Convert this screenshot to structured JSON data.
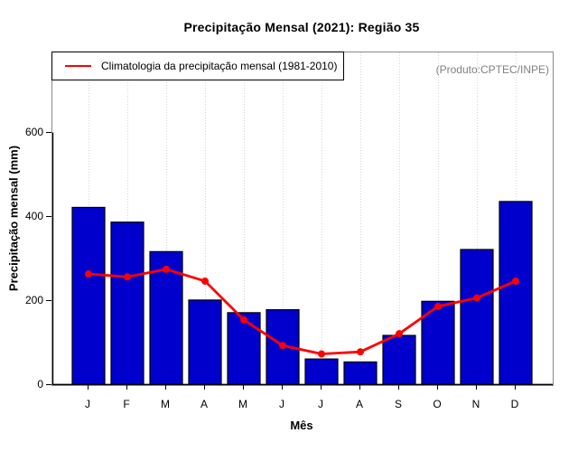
{
  "title": "Precipitação Mensal (2021): Região 35",
  "legend": {
    "label": "Climatologia da precipitação mensal (1981-2010)"
  },
  "annotation": "(Produto:CPTEC/INPE)",
  "axes": {
    "xlabel": "Mês",
    "ylabel": "Precipitação mensal (mm)",
    "ytick_labels": [
      "0",
      "200",
      "400",
      "600"
    ],
    "ytick_values": [
      0,
      200,
      400,
      600
    ]
  },
  "colors": {
    "bar_fill": "#0000CD",
    "bar_border": "#000000",
    "climatology_line": "#FF0000",
    "grid": "#D6D6D6",
    "box_border": "#8A8A8A",
    "axis": "#000000",
    "annotation_text": "#808080"
  },
  "chart_data": {
    "type": "bar",
    "title": "Precipitação Mensal (2021): Região 35",
    "xlabel": "Mês",
    "ylabel": "Precipitação mensal (mm)",
    "categories": [
      "J",
      "F",
      "M",
      "A",
      "M",
      "J",
      "J",
      "A",
      "S",
      "O",
      "N",
      "D"
    ],
    "series": [
      {
        "name": "Precipitação mensal 2021",
        "type": "bar",
        "values": [
          422,
          387,
          317,
          202,
          172,
          179,
          62,
          55,
          118,
          199,
          322,
          436
        ]
      },
      {
        "name": "Climatologia da precipitação mensal (1981-2010)",
        "type": "line",
        "values": [
          264,
          257,
          275,
          247,
          155,
          94,
          74,
          79,
          122,
          187,
          207,
          247
        ]
      }
    ],
    "ylim": [
      0,
      790
    ],
    "yticks": [
      0,
      200,
      400,
      600
    ],
    "grid": "vertical-dotted",
    "legend_position": "top-left"
  }
}
